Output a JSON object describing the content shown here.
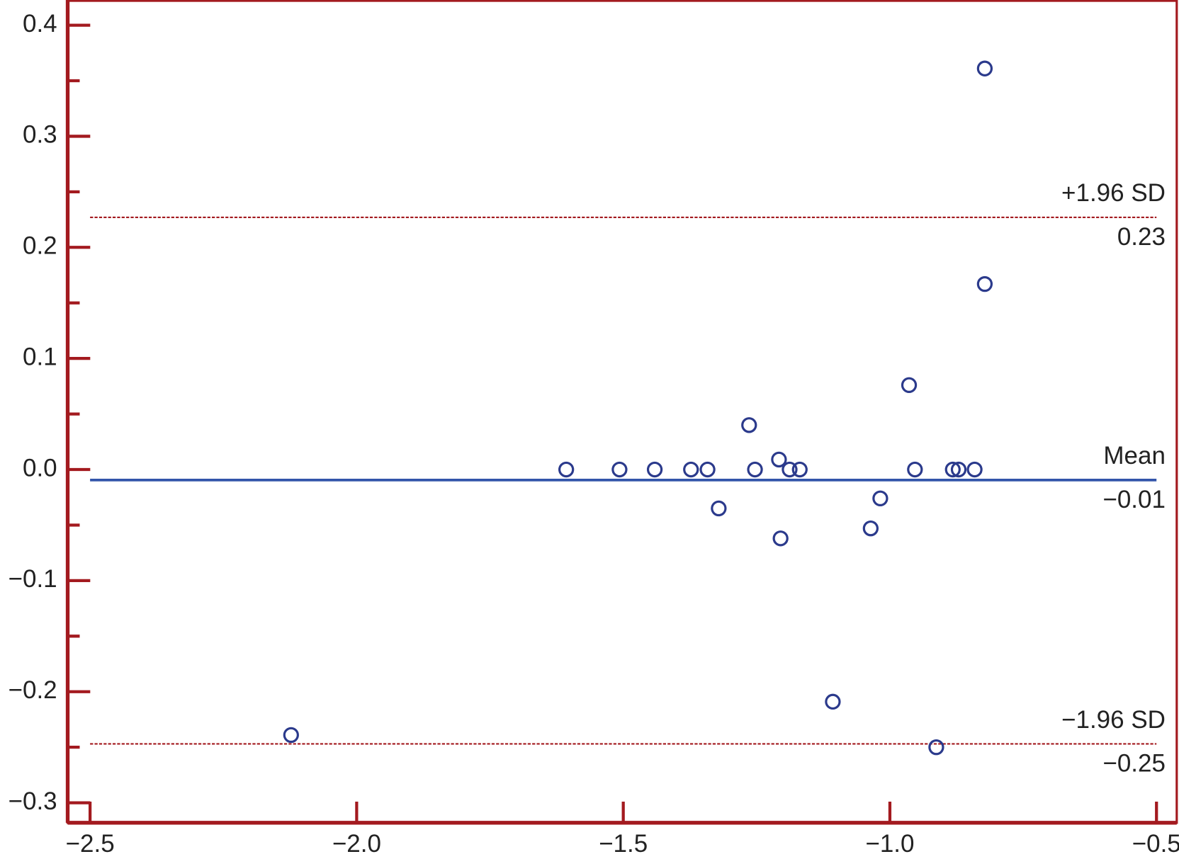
{
  "chart_data": {
    "type": "scatter",
    "x": [
      -0.822,
      -0.822,
      -0.964,
      -1.264,
      -1.208,
      -1.607,
      -1.507,
      -1.441,
      -1.373,
      -1.342,
      -1.253,
      -1.188,
      -1.169,
      -0.953,
      -0.882,
      -0.871,
      -0.841,
      -1.321,
      -1.018,
      -1.205,
      -1.036,
      -1.107,
      -2.123,
      -0.913
    ],
    "values": [
      0.361,
      0.167,
      0.076,
      0.04,
      0.009,
      0.0,
      0.0,
      0.0,
      0.0,
      0.0,
      0.0,
      0.0,
      0.0,
      0.0,
      0.0,
      0.0,
      0.0,
      -0.035,
      -0.026,
      -0.062,
      -0.053,
      -0.209,
      -0.239,
      -0.25
    ],
    "color": "#2b3a8c",
    "xlim": [
      -2.542,
      -0.462
    ],
    "ylim": [
      -0.318,
      0.422
    ],
    "xticks": [
      {
        "value": -2.5,
        "label": "−2.5"
      },
      {
        "value": -2.0,
        "label": "−2.0"
      },
      {
        "value": -1.5,
        "label": "−1.5"
      },
      {
        "value": -1.0,
        "label": "−1.0"
      },
      {
        "value": -0.5,
        "label": "−0.5"
      }
    ],
    "yticks": [
      0.4,
      0.3,
      0.2,
      0.1,
      {
        "value": 0,
        "label": "0.0"
      },
      {
        "value": -0.1,
        "label": "−0.1"
      },
      {
        "value": -0.2,
        "label": "−0.2"
      },
      {
        "value": -0.3,
        "label": "−0.3"
      }
    ],
    "yminorticks": [
      0.35,
      0.25,
      0.15,
      0.05,
      -0.05,
      -0.15,
      -0.25
    ],
    "axis_color": "#a31a1f",
    "reference_lines": [
      {
        "name": "+1.96 SD",
        "value": 0.227,
        "value_label": "0.23",
        "color": "#a31a1f",
        "dashed": true
      },
      {
        "name": "Mean",
        "value": -0.0095,
        "value_label": "−0.01",
        "color": "#3355aa",
        "dashed": false
      },
      {
        "name": "−1.96 SD",
        "value": -0.247,
        "value_label": "−0.25",
        "color": "#a31a1f",
        "dashed": true
      }
    ]
  }
}
